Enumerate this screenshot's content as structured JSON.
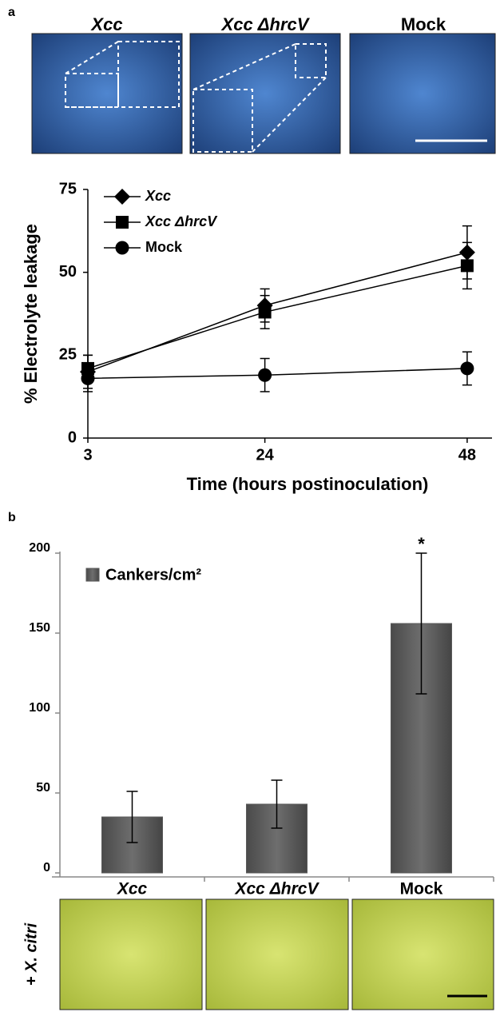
{
  "panels": [
    {
      "label": "a",
      "images": [
        "Xcc",
        "Xcc ΔhrcV",
        "Mock"
      ]
    },
    {
      "label": "b",
      "side_label": "+ X. citri"
    }
  ],
  "chart_data": [
    {
      "type": "line",
      "ylabel": "% Electrolyte leakage",
      "xlabel": "Time (hours postinoculation)",
      "x": [
        3,
        24,
        48
      ],
      "xlim": [
        3,
        50
      ],
      "xticks": [
        3,
        24,
        48
      ],
      "ylim": [
        0,
        75
      ],
      "yticks": [
        0,
        25,
        50,
        75
      ],
      "series": [
        {
          "name": "Xcc",
          "color": "#000000",
          "marker": "diamond",
          "values": [
            20,
            40,
            56
          ],
          "errors": [
            5,
            5,
            8
          ]
        },
        {
          "name": "Xcc ΔhrcV",
          "color": "#000000",
          "marker": "square",
          "values": [
            21,
            38,
            52
          ],
          "errors": [
            4,
            5,
            7
          ]
        },
        {
          "name": "Mock",
          "color": "#000000",
          "marker": "circle",
          "values": [
            18,
            19,
            21
          ],
          "errors": [
            4,
            5,
            5
          ]
        }
      ]
    },
    {
      "type": "bar",
      "categories": [
        "Xcc",
        "Xcc ΔhrcV",
        "Mock"
      ],
      "ylim": [
        0,
        200
      ],
      "yticks": [
        0,
        50,
        100,
        150,
        200
      ],
      "series": [
        {
          "name": "Cankers/cm²",
          "color": "#595959",
          "values": [
            35,
            43,
            156
          ],
          "errors": [
            16,
            15,
            44
          ]
        }
      ],
      "annotation": "*"
    }
  ]
}
